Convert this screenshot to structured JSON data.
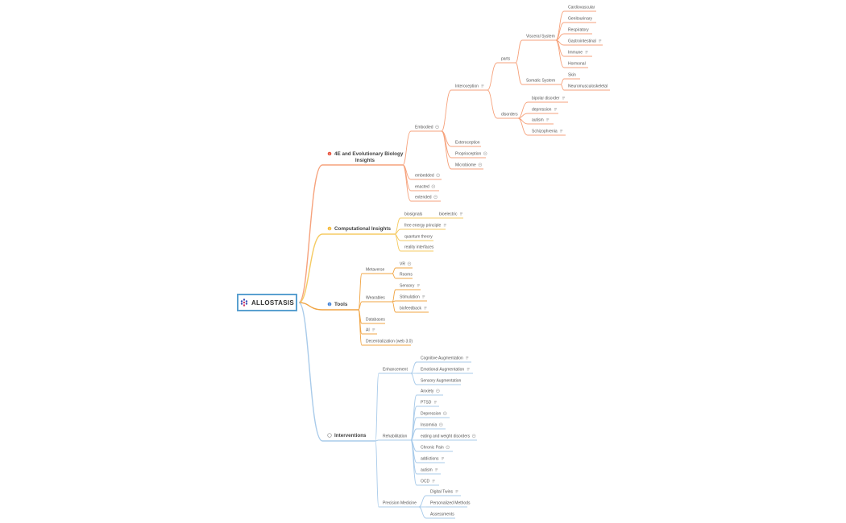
{
  "root": {
    "label": "ALLOSTASIS"
  },
  "colors": {
    "embodied": "#f6a27c",
    "computational": "#f5cb63",
    "tools": "#f0a443",
    "interventions": "#a9cbea",
    "root_border": "#5aa0d0"
  },
  "main_topics": [
    {
      "id": "4e",
      "label_line1": "4E and Evolutionary Biology",
      "label_line2": "Insights",
      "marker": "1",
      "marker_color": "#e8503a"
    },
    {
      "id": "comp",
      "label": "Computational Insights",
      "marker": "2",
      "marker_color": "#f5b731"
    },
    {
      "id": "tools",
      "label": "Tools",
      "marker": "3",
      "marker_color": "#3d7fd6"
    },
    {
      "id": "int",
      "label": "Interventions",
      "marker": "gear",
      "marker_color": "#8a8a8a"
    }
  ],
  "nodes": [
    {
      "id": "embodied",
      "parent": "4e",
      "label": "Embodied",
      "icon": "collapse"
    },
    {
      "id": "embedded",
      "parent": "4e",
      "label": "embedded",
      "icon": "collapse"
    },
    {
      "id": "enacted",
      "parent": "4e",
      "label": "enacted",
      "icon": "collapse"
    },
    {
      "id": "extended",
      "parent": "4e",
      "label": "extended",
      "icon": "collapse"
    },
    {
      "id": "intero",
      "parent": "embodied",
      "label": "Interoception",
      "icon": "note"
    },
    {
      "id": "extero",
      "parent": "embodied",
      "label": "Exteroception",
      "icon": ""
    },
    {
      "id": "proprio",
      "parent": "embodied",
      "label": "Proprioception",
      "icon": "collapse"
    },
    {
      "id": "micro",
      "parent": "embodied",
      "label": "Microbiome",
      "icon": "collapse"
    },
    {
      "id": "parts",
      "parent": "intero",
      "label": "parts",
      "icon": ""
    },
    {
      "id": "disorders",
      "parent": "intero",
      "label": "disorders",
      "icon": ""
    },
    {
      "id": "visceral",
      "parent": "parts",
      "label": "Visceral System",
      "icon": ""
    },
    {
      "id": "somatic",
      "parent": "parts",
      "label": "Somatic System",
      "icon": ""
    },
    {
      "id": "cardio",
      "parent": "visceral",
      "label": "Cardiovascular",
      "icon": ""
    },
    {
      "id": "genito",
      "parent": "visceral",
      "label": "Genitourinary",
      "icon": ""
    },
    {
      "id": "resp",
      "parent": "visceral",
      "label": "Respiratory",
      "icon": ""
    },
    {
      "id": "gastro",
      "parent": "visceral",
      "label": "Gastrointestinal",
      "icon": "note"
    },
    {
      "id": "immune",
      "parent": "visceral",
      "label": "Immune",
      "icon": "note"
    },
    {
      "id": "hormonal",
      "parent": "visceral",
      "label": "Hormonal",
      "icon": ""
    },
    {
      "id": "skin",
      "parent": "somatic",
      "label": "Skin",
      "icon": ""
    },
    {
      "id": "neuro",
      "parent": "somatic",
      "label": "Neuromusculoskeletal",
      "icon": ""
    },
    {
      "id": "bipolar",
      "parent": "disorders",
      "label": "bipolar disorder",
      "icon": "note"
    },
    {
      "id": "depr1",
      "parent": "disorders",
      "label": "depression",
      "icon": "note"
    },
    {
      "id": "autism1",
      "parent": "disorders",
      "label": "autism",
      "icon": "note"
    },
    {
      "id": "schizo",
      "parent": "disorders",
      "label": "Schizophrenia",
      "icon": "note"
    },
    {
      "id": "biosig",
      "parent": "comp",
      "label": "biosignals",
      "icon": ""
    },
    {
      "id": "bioel",
      "parent": "biosig",
      "label": "bioelectric",
      "icon": "note"
    },
    {
      "id": "fep",
      "parent": "comp",
      "label": "free energy principle",
      "icon": "note"
    },
    {
      "id": "quantum",
      "parent": "comp",
      "label": "quantum theory",
      "icon": ""
    },
    {
      "id": "reality",
      "parent": "comp",
      "label": "reality interfaces",
      "icon": ""
    },
    {
      "id": "meta",
      "parent": "tools",
      "label": "Metaverse",
      "icon": ""
    },
    {
      "id": "vr",
      "parent": "meta",
      "label": "VR",
      "icon": "collapse"
    },
    {
      "id": "rooms",
      "parent": "meta",
      "label": "Rooms",
      "icon": ""
    },
    {
      "id": "wear",
      "parent": "tools",
      "label": "Wearables",
      "icon": ""
    },
    {
      "id": "sensory",
      "parent": "wear",
      "label": "Sensory",
      "icon": "note"
    },
    {
      "id": "stim",
      "parent": "wear",
      "label": "Stimulation",
      "icon": "note"
    },
    {
      "id": "biofb",
      "parent": "wear",
      "label": "biofeedback",
      "icon": "note"
    },
    {
      "id": "db",
      "parent": "tools",
      "label": "Databases",
      "icon": ""
    },
    {
      "id": "ai",
      "parent": "tools",
      "label": "AI",
      "icon": "note"
    },
    {
      "id": "decent",
      "parent": "tools",
      "label": "Decentralization (web 3.0)",
      "icon": ""
    },
    {
      "id": "enh",
      "parent": "int",
      "label": "Enhancement",
      "icon": ""
    },
    {
      "id": "cog",
      "parent": "enh",
      "label": "Cognitive Augmentation",
      "icon": "note"
    },
    {
      "id": "emo",
      "parent": "enh",
      "label": "Emotional Augmentation",
      "icon": "note"
    },
    {
      "id": "sens",
      "parent": "enh",
      "label": "Sensory Augmentation",
      "icon": ""
    },
    {
      "id": "rehab",
      "parent": "int",
      "label": "Rehabilitation",
      "icon": ""
    },
    {
      "id": "anx",
      "parent": "rehab",
      "label": "Anxiety",
      "icon": "collapse"
    },
    {
      "id": "ptsd",
      "parent": "rehab",
      "label": "PTSD",
      "icon": "note"
    },
    {
      "id": "depr2",
      "parent": "rehab",
      "label": "Depression",
      "icon": "collapse"
    },
    {
      "id": "insom",
      "parent": "rehab",
      "label": "Insomnia",
      "icon": "collapse"
    },
    {
      "id": "eating",
      "parent": "rehab",
      "label": "eating and weight disorders",
      "icon": "collapse"
    },
    {
      "id": "pain",
      "parent": "rehab",
      "label": "Chronic Pain",
      "icon": "collapse"
    },
    {
      "id": "addict",
      "parent": "rehab",
      "label": "addictions",
      "icon": "note"
    },
    {
      "id": "autism2",
      "parent": "rehab",
      "label": "autism",
      "icon": "note"
    },
    {
      "id": "ocd",
      "parent": "rehab",
      "label": "OCD",
      "icon": "note"
    },
    {
      "id": "prec",
      "parent": "int",
      "label": "Precision Medicine",
      "icon": ""
    },
    {
      "id": "twins",
      "parent": "prec",
      "label": "Digital Twins",
      "icon": "note"
    },
    {
      "id": "pers",
      "parent": "prec",
      "label": "Personalized Methods",
      "icon": ""
    },
    {
      "id": "assess",
      "parent": "prec",
      "label": "Assessments",
      "icon": ""
    }
  ]
}
